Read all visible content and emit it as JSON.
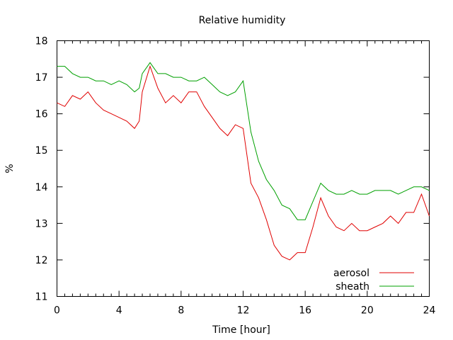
{
  "chart_data": {
    "type": "line",
    "title": "Relative humidity",
    "xlabel": "Time [hour]",
    "ylabel": "%",
    "xlim": [
      0,
      24
    ],
    "ylim": [
      11,
      18
    ],
    "x_ticks": [
      0,
      4,
      8,
      12,
      16,
      20,
      24
    ],
    "y_ticks": [
      11,
      12,
      13,
      14,
      15,
      16,
      17,
      18
    ],
    "grid": false,
    "legend_position": "bottom-right",
    "series": [
      {
        "name": "aerosol",
        "color": "#e00000",
        "x": [
          0,
          0.5,
          1,
          1.5,
          2,
          2.5,
          3,
          3.5,
          4,
          4.5,
          5,
          5.3,
          5.5,
          6,
          6.5,
          7,
          7.5,
          8,
          8.5,
          9,
          9.5,
          10,
          10.5,
          11,
          11.5,
          12,
          12.5,
          13,
          13.5,
          14,
          14.5,
          15,
          15.5,
          16,
          16.5,
          17,
          17.5,
          18,
          18.5,
          19,
          19.5,
          20,
          20.5,
          21,
          21.5,
          22,
          22.5,
          23,
          23.5,
          24
        ],
        "y": [
          16.3,
          16.2,
          16.5,
          16.4,
          16.6,
          16.3,
          16.1,
          16.0,
          15.9,
          15.8,
          15.6,
          15.8,
          16.6,
          17.3,
          16.7,
          16.3,
          16.5,
          16.3,
          16.6,
          16.6,
          16.2,
          15.9,
          15.6,
          15.4,
          15.7,
          15.6,
          14.1,
          13.7,
          13.1,
          12.4,
          12.1,
          12.0,
          12.2,
          12.2,
          12.9,
          13.7,
          13.2,
          12.9,
          12.8,
          13.0,
          12.8,
          12.8,
          12.9,
          13.0,
          13.2,
          13.0,
          13.3,
          13.3,
          13.8,
          13.2
        ]
      },
      {
        "name": "sheath",
        "color": "#00a000",
        "x": [
          0,
          0.5,
          1,
          1.5,
          2,
          2.5,
          3,
          3.5,
          4,
          4.5,
          5,
          5.3,
          5.5,
          6,
          6.5,
          7,
          7.5,
          8,
          8.5,
          9,
          9.5,
          10,
          10.5,
          11,
          11.5,
          12,
          12.5,
          13,
          13.5,
          14,
          14.5,
          15,
          15.5,
          16,
          16.5,
          17,
          17.5,
          18,
          18.5,
          19,
          19.5,
          20,
          20.5,
          21,
          21.5,
          22,
          22.5,
          23,
          23.5,
          24
        ],
        "y": [
          17.3,
          17.3,
          17.1,
          17.0,
          17.0,
          16.9,
          16.9,
          16.8,
          16.9,
          16.8,
          16.6,
          16.7,
          17.1,
          17.4,
          17.1,
          17.1,
          17.0,
          17.0,
          16.9,
          16.9,
          17.0,
          16.8,
          16.6,
          16.5,
          16.6,
          16.9,
          15.5,
          14.7,
          14.2,
          13.9,
          13.5,
          13.4,
          13.1,
          13.1,
          13.6,
          14.1,
          13.9,
          13.8,
          13.8,
          13.9,
          13.8,
          13.8,
          13.9,
          13.9,
          13.9,
          13.8,
          13.9,
          14.0,
          14.0,
          13.9
        ]
      }
    ]
  }
}
